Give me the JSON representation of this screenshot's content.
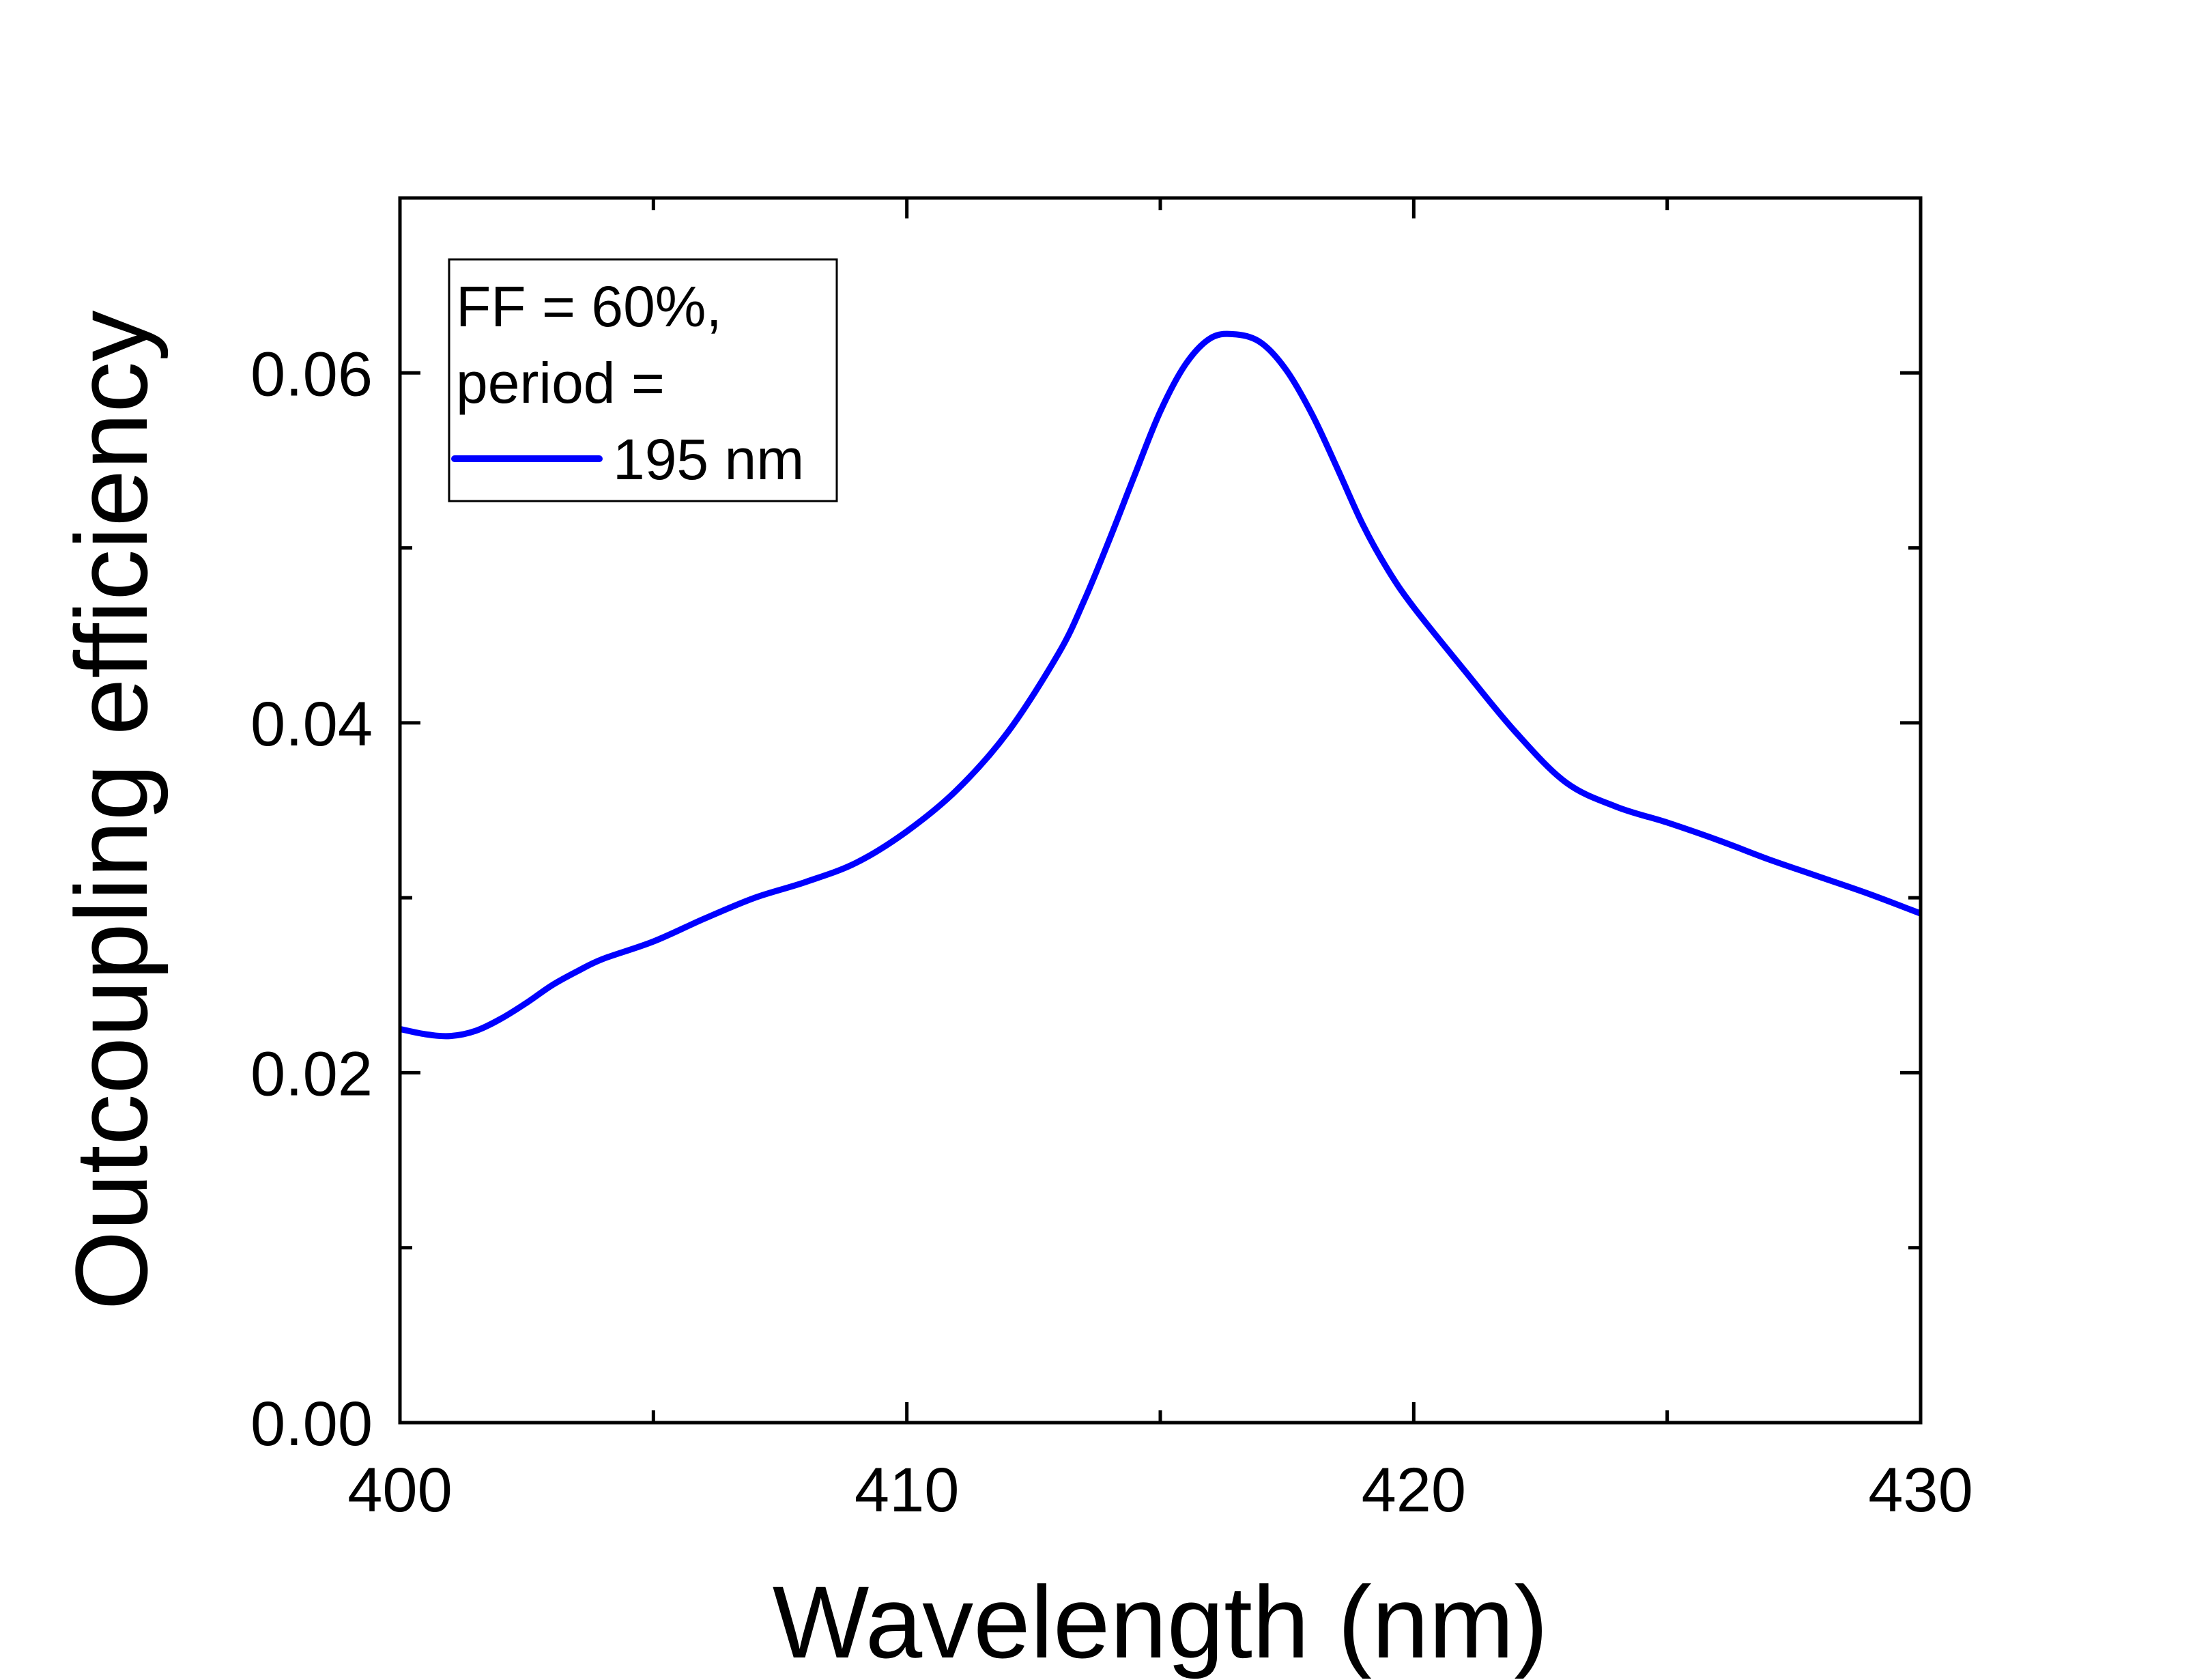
{
  "chart_data": {
    "type": "line",
    "title": "",
    "xlabel": "Wavelength (nm)",
    "ylabel": "Outcoupling efficiency",
    "xlim": [
      400,
      430
    ],
    "ylim": [
      0.0,
      0.07
    ],
    "x_major_ticks": [
      400,
      410,
      420,
      430
    ],
    "x_tick_labels": [
      "400",
      "410",
      "420",
      "430"
    ],
    "x_minor_ticks": [
      405,
      415,
      425
    ],
    "y_major_ticks": [
      0.0,
      0.02,
      0.04,
      0.06
    ],
    "y_tick_labels": [
      "0.00",
      "0.02",
      "0.04",
      "0.06"
    ],
    "y_minor_ticks": [
      0.01,
      0.03,
      0.05
    ],
    "grid": false,
    "legend": {
      "position": "top-left",
      "lines": [
        "FF = 60%,",
        "period =",
        "195 nm"
      ]
    },
    "series": [
      {
        "name": "FF = 60%, period = 195 nm",
        "color": "#0000ff",
        "x": [
          400,
          400.5,
          401,
          401.5,
          402,
          402.5,
          403,
          403.5,
          404,
          405,
          406,
          407,
          408,
          409,
          410,
          411,
          412,
          413,
          413.5,
          414,
          414.5,
          415,
          415.5,
          416,
          416.5,
          417,
          417.5,
          418,
          418.5,
          419,
          419.5,
          420,
          421,
          422,
          423,
          424,
          425,
          426,
          427,
          428,
          429,
          430
        ],
        "y": [
          0.0225,
          0.0222,
          0.0221,
          0.0224,
          0.0231,
          0.024,
          0.025,
          0.0258,
          0.0265,
          0.0275,
          0.0288,
          0.03,
          0.0309,
          0.032,
          0.0338,
          0.0362,
          0.0395,
          0.044,
          0.047,
          0.0505,
          0.0542,
          0.0578,
          0.0605,
          0.062,
          0.0622,
          0.0617,
          0.0601,
          0.0576,
          0.0545,
          0.0513,
          0.0487,
          0.0466,
          0.043,
          0.0395,
          0.0366,
          0.0352,
          0.0343,
          0.0333,
          0.0322,
          0.0312,
          0.0302,
          0.0291
        ]
      }
    ]
  }
}
